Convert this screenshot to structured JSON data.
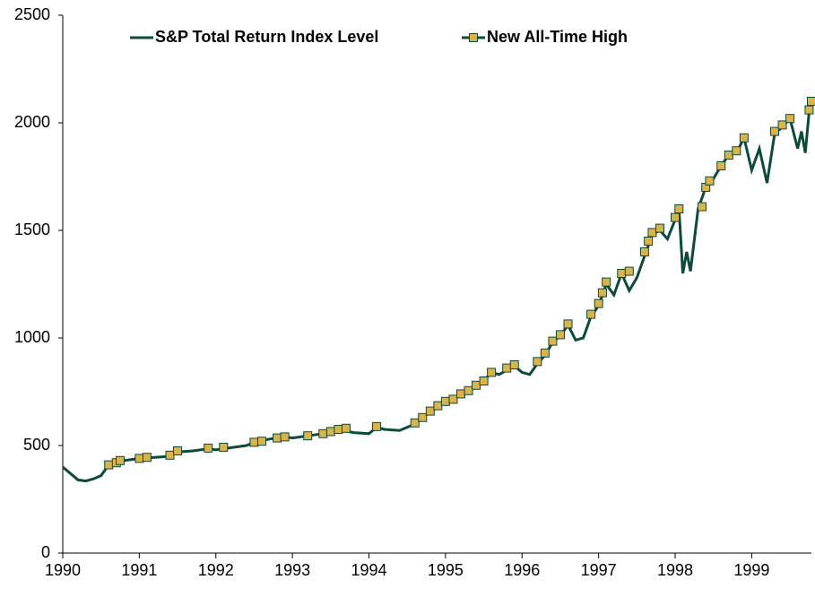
{
  "chart_data": {
    "type": "line",
    "series": [
      {
        "name": "S&P Total Return Index Level",
        "color": "#0d4a3b",
        "marker": false,
        "x": [
          1990.0,
          1990.1,
          1990.2,
          1990.3,
          1990.4,
          1990.5,
          1990.6,
          1990.7,
          1990.8,
          1990.9,
          1991.0,
          1991.2,
          1991.4,
          1991.5,
          1991.7,
          1991.9,
          1992.0,
          1992.2,
          1992.4,
          1992.5,
          1992.7,
          1992.9,
          1993.0,
          1993.2,
          1993.4,
          1993.6,
          1993.8,
          1994.0,
          1994.1,
          1994.2,
          1994.4,
          1994.5,
          1994.6,
          1994.7,
          1994.8,
          1994.9,
          1995.0,
          1995.2,
          1995.4,
          1995.5,
          1995.6,
          1995.7,
          1995.8,
          1995.9,
          1996.0,
          1996.1,
          1996.2,
          1996.3,
          1996.4,
          1996.5,
          1996.6,
          1996.7,
          1996.8,
          1996.9,
          1997.0,
          1997.1,
          1997.2,
          1997.3,
          1997.4,
          1997.5,
          1997.6,
          1997.7,
          1997.8,
          1997.9,
          1998.0,
          1998.05,
          1998.1,
          1998.15,
          1998.2,
          1998.3,
          1998.4,
          1998.5,
          1998.6,
          1998.7,
          1998.8,
          1998.9,
          1999.0,
          1999.1,
          1999.2,
          1999.3,
          1999.4,
          1999.5,
          1999.6,
          1999.65,
          1999.7,
          1999.75,
          1999.78
        ],
        "values": [
          400,
          370,
          340,
          335,
          345,
          360,
          410,
          420,
          430,
          435,
          440,
          445,
          450,
          470,
          475,
          485,
          480,
          490,
          500,
          515,
          530,
          540,
          535,
          545,
          555,
          575,
          560,
          555,
          585,
          575,
          570,
          585,
          600,
          630,
          655,
          680,
          700,
          740,
          780,
          800,
          840,
          830,
          850,
          870,
          840,
          830,
          880,
          920,
          980,
          1010,
          1060,
          990,
          1000,
          1100,
          1150,
          1250,
          1200,
          1300,
          1220,
          1280,
          1380,
          1480,
          1500,
          1460,
          1550,
          1600,
          1300,
          1400,
          1310,
          1600,
          1700,
          1740,
          1800,
          1850,
          1860,
          1930,
          1780,
          1880,
          1720,
          1950,
          1980,
          2020,
          1880,
          1960,
          1860,
          2050,
          2100
        ]
      },
      {
        "name": "New All-Time High",
        "color": "#d9b44a",
        "marker": true,
        "x": [
          1990.6,
          1990.7,
          1990.75,
          1991.0,
          1991.1,
          1991.4,
          1991.5,
          1991.9,
          1992.1,
          1992.5,
          1992.6,
          1992.8,
          1992.9,
          1993.2,
          1993.4,
          1993.5,
          1993.6,
          1993.7,
          1994.1,
          1994.6,
          1994.7,
          1994.8,
          1994.9,
          1995.0,
          1995.1,
          1995.2,
          1995.3,
          1995.4,
          1995.5,
          1995.6,
          1995.8,
          1995.9,
          1996.2,
          1996.3,
          1996.4,
          1996.5,
          1996.6,
          1996.9,
          1997.0,
          1997.05,
          1997.1,
          1997.3,
          1997.4,
          1997.6,
          1997.65,
          1997.7,
          1997.8,
          1998.0,
          1998.05,
          1998.35,
          1998.4,
          1998.45,
          1998.6,
          1998.7,
          1998.8,
          1998.9,
          1999.3,
          1999.4,
          1999.5,
          1999.75,
          1999.78
        ],
        "values": [
          410,
          420,
          430,
          440,
          445,
          455,
          475,
          488,
          492,
          515,
          520,
          535,
          540,
          545,
          555,
          565,
          575,
          580,
          588,
          605,
          630,
          660,
          685,
          705,
          715,
          740,
          755,
          780,
          800,
          840,
          860,
          875,
          890,
          930,
          985,
          1015,
          1065,
          1110,
          1160,
          1210,
          1260,
          1300,
          1310,
          1400,
          1450,
          1490,
          1510,
          1560,
          1600,
          1610,
          1700,
          1730,
          1800,
          1850,
          1870,
          1930,
          1960,
          1990,
          2020,
          2060,
          2100
        ]
      }
    ],
    "xlim": [
      1990,
      1999.78
    ],
    "xticks": [
      1990,
      1991,
      1992,
      1993,
      1994,
      1995,
      1996,
      1997,
      1998,
      1999
    ],
    "ylim": [
      0,
      2500
    ],
    "yticks": [
      0,
      500,
      1000,
      1500,
      2000,
      2500
    ],
    "legend": "top",
    "grid": false
  }
}
